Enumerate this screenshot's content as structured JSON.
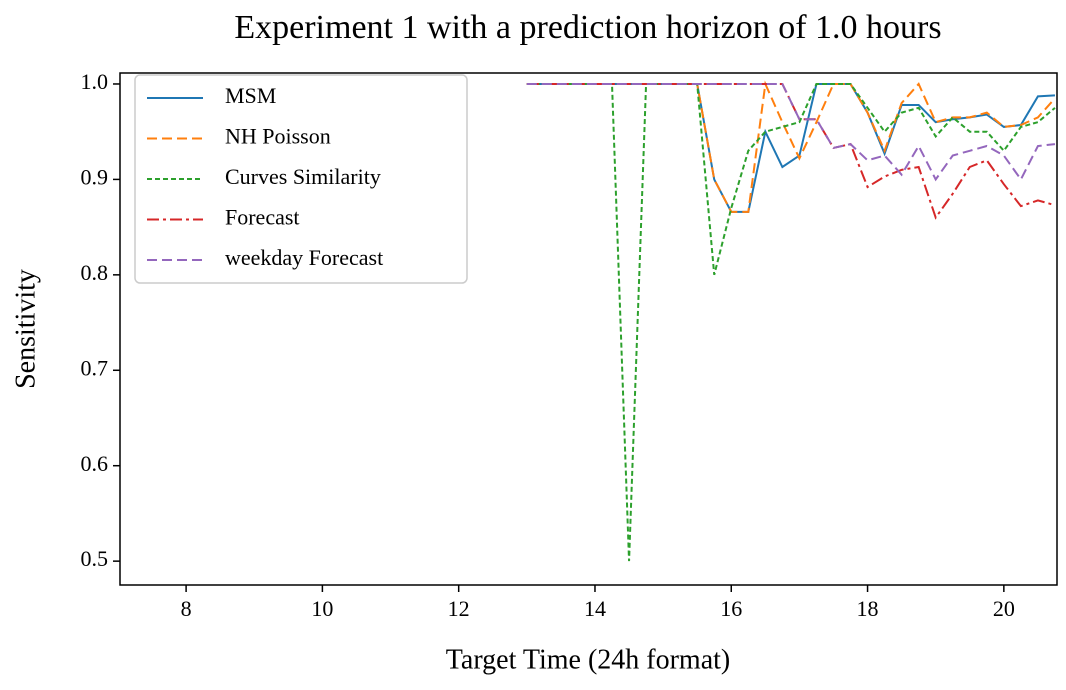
{
  "chart_data": {
    "type": "line",
    "title": "Experiment 1 with a prediction horizon of 1.0 hours",
    "x_label": "Target Time (24h format)",
    "y_label": "Sensitivity",
    "x": [
      13,
      13.25,
      13.5,
      13.75,
      14,
      14.25,
      14.5,
      14.75,
      15,
      15.25,
      15.5,
      15.75,
      16,
      16.25,
      16.5,
      16.75,
      17,
      17.25,
      17.5,
      17.75,
      18,
      18.25,
      18.5,
      18.75,
      19,
      19.25,
      19.5,
      19.75,
      20,
      20.25,
      20.5,
      20.75
    ],
    "series": [
      {
        "name": "MSM",
        "color": "#1f77b4",
        "linestyle": "solid",
        "values": [
          1,
          1,
          1,
          1,
          1,
          1,
          1,
          1,
          1,
          1,
          1,
          0.9,
          0.866,
          0.866,
          0.95,
          0.913,
          0.925,
          1,
          1,
          1,
          0.97,
          0.927,
          0.978,
          0.978,
          0.96,
          0.963,
          0.965,
          0.968,
          0.955,
          0.957,
          0.987,
          0.988
        ]
      },
      {
        "name": "NH Poisson",
        "color": "#ff7f0e",
        "linestyle": "dashed",
        "values": [
          1,
          1,
          1,
          1,
          1,
          1,
          1,
          1,
          1,
          1,
          1,
          0.9,
          0.866,
          0.866,
          1,
          0.96,
          0.922,
          0.96,
          1,
          1,
          0.97,
          0.93,
          0.98,
          1,
          0.96,
          0.965,
          0.965,
          0.97,
          0.955,
          0.957,
          0.965,
          0.985
        ]
      },
      {
        "name": "Curves Similarity",
        "color": "#2ca02c",
        "linestyle": "dotted",
        "values": [
          1,
          1,
          1,
          1,
          1,
          1,
          0.5,
          1,
          1,
          1,
          1,
          0.8,
          0.87,
          0.93,
          0.95,
          0.955,
          0.96,
          1,
          1,
          1,
          0.975,
          0.95,
          0.97,
          0.975,
          0.945,
          0.965,
          0.95,
          0.95,
          0.93,
          0.955,
          0.96,
          0.975
        ]
      },
      {
        "name": "Forecast",
        "color": "#d62728",
        "linestyle": "dashdot",
        "values": [
          1,
          1,
          1,
          1,
          1,
          1,
          1,
          1,
          1,
          1,
          1,
          1,
          1,
          1,
          1,
          1,
          0.963,
          0.963,
          0.933,
          0.937,
          0.892,
          0.903,
          0.91,
          0.913,
          0.86,
          0.885,
          0.913,
          0.92,
          0.895,
          0.872,
          0.878,
          0.873
        ]
      },
      {
        "name": "weekday Forecast",
        "color": "#9467bd",
        "linestyle": "dashed",
        "values": [
          1,
          1,
          1,
          1,
          1,
          1,
          1,
          1,
          1,
          1,
          1,
          1,
          1,
          1,
          1,
          1,
          0.963,
          0.963,
          0.933,
          0.937,
          0.92,
          0.925,
          0.905,
          0.935,
          0.9,
          0.925,
          0.93,
          0.935,
          0.925,
          0.9,
          0.935,
          0.937
        ]
      }
    ],
    "xlim": [
      7.03,
      20.78
    ],
    "xticks": [
      8,
      10,
      12,
      14,
      16,
      18,
      20
    ],
    "ylim": [
      0.475,
      1.0115
    ],
    "yticks": [
      0.5,
      0.6,
      0.7,
      0.8,
      0.9,
      {
        "value": 1,
        "label": "1.0"
      }
    ],
    "grid": false,
    "legend": "upper left"
  }
}
